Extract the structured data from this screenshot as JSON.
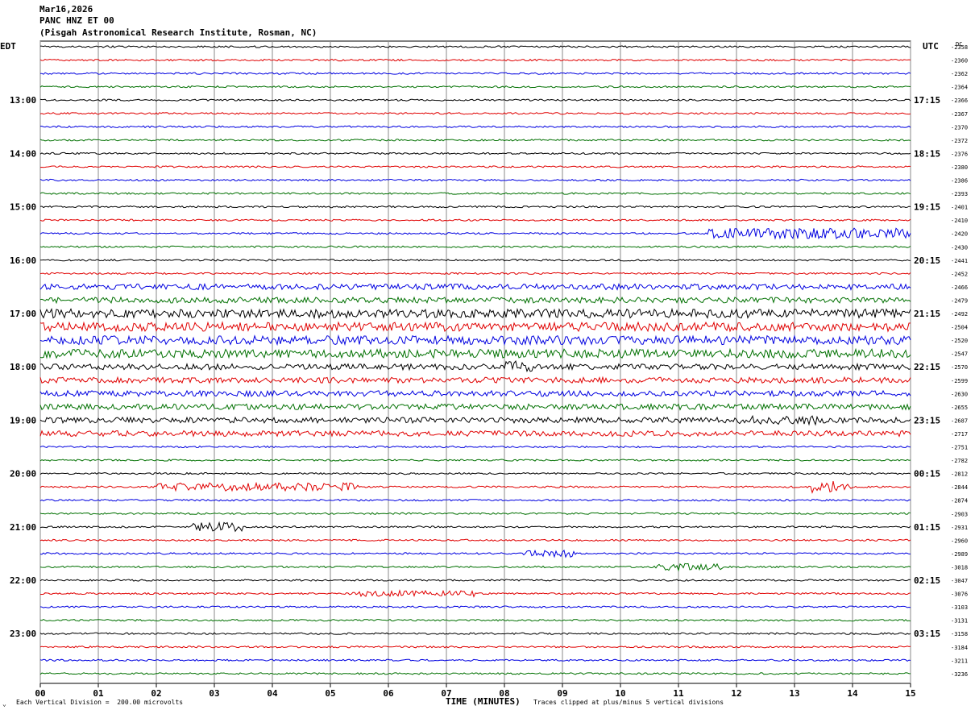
{
  "header": {
    "date": "Mar16,2026",
    "station": "PANC HNZ ET 00",
    "institute": "(Pisgah Astronomical Research Institute, Rosman, NC)"
  },
  "axis": {
    "left_tz": "EDT",
    "right_tz": "UTC",
    "dc_label": "DC",
    "xlabel": "TIME (MINUTES)"
  },
  "footer": {
    "corner_mark": "⌄",
    "scale_note": "Each Vertical Division =  200.00 microvolts",
    "clip_note": "Traces clipped at plus/minus 5 vertical divisions"
  },
  "chart_data": {
    "type": "line",
    "x_ticks": [
      "00",
      "01",
      "02",
      "03",
      "04",
      "05",
      "06",
      "07",
      "08",
      "09",
      "10",
      "11",
      "12",
      "13",
      "14",
      "15"
    ],
    "xlim": [
      0,
      15
    ],
    "left_hour_labels": [
      "13:00",
      "14:00",
      "15:00",
      "16:00",
      "17:00",
      "18:00",
      "19:00",
      "20:00",
      "21:00",
      "22:00",
      "23:00"
    ],
    "right_hour_labels": [
      "17:15",
      "18:15",
      "19:15",
      "20:15",
      "21:15",
      "22:15",
      "23:15",
      "00:15",
      "01:15",
      "02:15",
      "03:15"
    ],
    "dc_offsets": [
      "-2358",
      "-2360",
      "-2362",
      "-2364",
      "-2366",
      "-2367",
      "-2370",
      "-2372",
      "-2376",
      "-2380",
      "-2386",
      "-2393",
      "-2401",
      "-2410",
      "-2420",
      "-2430",
      "-2441",
      "-2452",
      "-2466",
      "-2479",
      "-2492",
      "-2504",
      "-2520",
      "-2547",
      "-2570",
      "-2599",
      "-2630",
      "-2655",
      "-2687",
      "-2717",
      "-2751",
      "-2782",
      "-2812",
      "-2844",
      "-2874",
      "-2903",
      "-2931",
      "-2960",
      "-2989",
      "-3018",
      "-3047",
      "-3076",
      "-3103",
      "-3131",
      "-3158",
      "-3184",
      "-3211",
      "-3236"
    ],
    "trace_colors": [
      "#000000",
      "#e00000",
      "#0000e0",
      "#007000"
    ],
    "trace_count": 48,
    "trace_minutes": 15,
    "grid": true
  }
}
